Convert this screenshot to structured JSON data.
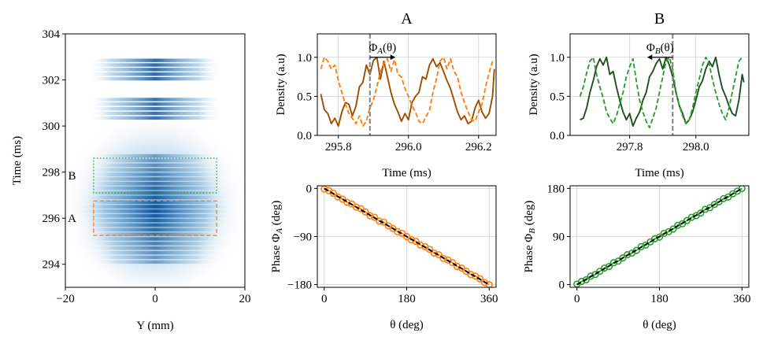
{
  "chart_data": [
    {
      "id": "density-map",
      "type": "heatmap",
      "xlabel": "Y (mm)",
      "ylabel": "Time (ms)",
      "xlim": [
        -20,
        20
      ],
      "ylim": [
        293,
        304
      ],
      "xticks": [
        "−20",
        "0",
        "20"
      ],
      "yticks": [
        "294",
        "296",
        "298",
        "300",
        "302",
        "304"
      ],
      "regions": [
        {
          "label": "A",
          "x": [
            -13.7,
            13.7
          ],
          "y": [
            295.25,
            296.75
          ],
          "color": "#ff7f0e",
          "style": "dashed"
        },
        {
          "label": "B",
          "x": [
            -13.7,
            13.7
          ],
          "y": [
            297.1,
            298.6
          ],
          "color": "#2ca02c",
          "style": "dotted"
        }
      ],
      "colormap": "Blues"
    },
    {
      "id": "density-A",
      "type": "line",
      "title": "A",
      "xlabel": "Time (ms)",
      "ylabel": "Density (a.u)",
      "xlim": [
        295.74,
        296.25
      ],
      "ylim": [
        0,
        1.3
      ],
      "xticks": [
        "295.8",
        "296.0",
        "296.2"
      ],
      "yticks": [
        "0.0",
        "0.5",
        "1.0"
      ],
      "vline": 295.89,
      "annotation": {
        "text": "Φ",
        "sub": "A",
        "rest": "(θ)",
        "arrow": "right"
      },
      "series": [
        {
          "style": "solid",
          "color": "#a04d00",
          "x": [
            295.75,
            295.76,
            295.77,
            295.78,
            295.79,
            295.8,
            295.81,
            295.82,
            295.83,
            295.84,
            295.85,
            295.86,
            295.87,
            295.88,
            295.89,
            295.9,
            295.91,
            295.92,
            295.93,
            295.94,
            295.95,
            295.96,
            295.97,
            295.98,
            295.99,
            296.0,
            296.01,
            296.02,
            296.03,
            296.04,
            296.05,
            296.06,
            296.07,
            296.08,
            296.09,
            296.1,
            296.11,
            296.12,
            296.13,
            296.14,
            296.15,
            296.16,
            296.17,
            296.18,
            296.19,
            296.2,
            296.21,
            296.22,
            296.23,
            296.24,
            296.245
          ],
          "y": [
            0.53,
            0.33,
            0.28,
            0.15,
            0.22,
            0.12,
            0.3,
            0.42,
            0.4,
            0.25,
            0.37,
            0.62,
            0.68,
            0.9,
            0.78,
            0.96,
            1.0,
            0.72,
            0.95,
            0.75,
            0.55,
            0.4,
            0.3,
            0.18,
            0.28,
            0.2,
            0.42,
            0.5,
            0.55,
            0.75,
            0.72,
            0.9,
            0.98,
            0.88,
            0.93,
            0.82,
            0.7,
            0.6,
            0.45,
            0.3,
            0.2,
            0.25,
            0.15,
            0.18,
            0.35,
            0.45,
            0.3,
            0.22,
            0.28,
            0.5,
            0.85
          ]
        },
        {
          "style": "dashed",
          "color": "#ff7f0e",
          "x": [
            295.75,
            295.76,
            295.77,
            295.78,
            295.79,
            295.8,
            295.81,
            295.82,
            295.83,
            295.84,
            295.85,
            295.86,
            295.87,
            295.88,
            295.89,
            295.9,
            295.91,
            295.92,
            295.93,
            295.94,
            295.95,
            295.96,
            295.97,
            295.98,
            295.99,
            296.0,
            296.01,
            296.02,
            296.03,
            296.04,
            296.05,
            296.06,
            296.07,
            296.08,
            296.09,
            296.1,
            296.11,
            296.12,
            296.13,
            296.14,
            296.15,
            296.16,
            296.17,
            296.18,
            296.19,
            296.2,
            296.21,
            296.22,
            296.23,
            296.24
          ],
          "y": [
            0.85,
            1.0,
            0.95,
            0.85,
            0.9,
            0.7,
            0.55,
            0.4,
            0.28,
            0.22,
            0.15,
            0.25,
            0.12,
            0.18,
            0.35,
            0.45,
            0.62,
            0.82,
            0.92,
            0.98,
            0.82,
            0.97,
            0.78,
            0.75,
            0.6,
            0.5,
            0.38,
            0.3,
            0.18,
            0.15,
            0.24,
            0.32,
            0.55,
            0.72,
            0.95,
            1.0,
            0.85,
            0.98,
            0.82,
            0.75,
            0.55,
            0.42,
            0.3,
            0.2,
            0.18,
            0.3,
            0.4,
            0.62,
            0.8,
            0.95
          ]
        }
      ]
    },
    {
      "id": "density-B",
      "type": "line",
      "title": "B",
      "xlabel": "Time (ms)",
      "ylabel": "Density (a.u)",
      "xlim": [
        297.62,
        298.16
      ],
      "ylim": [
        0,
        1.3
      ],
      "xticks": [
        "297.8",
        "298.0"
      ],
      "yticks": [
        "0.0",
        "0.5",
        "1.0"
      ],
      "vline": 297.93,
      "annotation": {
        "text": "Φ",
        "sub": "B",
        "rest": "(θ)",
        "arrow": "left"
      },
      "series": [
        {
          "style": "solid",
          "color": "#1f4f1f",
          "x": [
            297.65,
            297.66,
            297.67,
            297.68,
            297.69,
            297.7,
            297.71,
            297.72,
            297.73,
            297.74,
            297.75,
            297.76,
            297.77,
            297.78,
            297.79,
            297.8,
            297.81,
            297.82,
            297.83,
            297.84,
            297.85,
            297.86,
            297.87,
            297.88,
            297.89,
            297.9,
            297.91,
            297.92,
            297.93,
            297.94,
            297.95,
            297.96,
            297.97,
            297.98,
            297.99,
            298.0,
            298.01,
            298.02,
            298.03,
            298.04,
            298.05,
            298.06,
            298.07,
            298.08,
            298.09,
            298.1,
            298.11,
            298.12,
            298.13,
            298.14,
            298.145
          ],
          "y": [
            0.2,
            0.22,
            0.35,
            0.55,
            0.7,
            0.88,
            0.98,
            0.9,
            1.0,
            0.78,
            0.82,
            0.62,
            0.45,
            0.3,
            0.2,
            0.28,
            0.12,
            0.22,
            0.3,
            0.45,
            0.55,
            0.75,
            0.82,
            0.92,
            0.98,
            0.85,
            1.0,
            0.9,
            0.75,
            0.55,
            0.38,
            0.28,
            0.15,
            0.2,
            0.3,
            0.45,
            0.62,
            0.7,
            0.85,
            0.95,
            0.88,
            1.0,
            0.78,
            0.6,
            0.5,
            0.38,
            0.28,
            0.25,
            0.45,
            0.78,
            0.68
          ]
        },
        {
          "style": "dashed",
          "color": "#2ca02c",
          "x": [
            297.65,
            297.66,
            297.67,
            297.68,
            297.69,
            297.7,
            297.71,
            297.72,
            297.73,
            297.74,
            297.75,
            297.76,
            297.77,
            297.78,
            297.79,
            297.8,
            297.81,
            297.82,
            297.83,
            297.84,
            297.85,
            297.86,
            297.87,
            297.88,
            297.89,
            297.9,
            297.91,
            297.92,
            297.93,
            297.94,
            297.95,
            297.96,
            297.97,
            297.98,
            297.99,
            298.0,
            298.01,
            298.02,
            298.03,
            298.04,
            298.05,
            298.06,
            298.07,
            298.08,
            298.09,
            298.1,
            298.11,
            298.12,
            298.13,
            298.14
          ],
          "y": [
            0.5,
            0.62,
            0.8,
            0.95,
            1.0,
            0.78,
            0.62,
            0.48,
            0.3,
            0.22,
            0.15,
            0.25,
            0.4,
            0.55,
            0.75,
            0.88,
            0.98,
            0.7,
            0.45,
            0.3,
            0.18,
            0.1,
            0.22,
            0.35,
            0.55,
            0.75,
            0.95,
            1.0,
            0.85,
            0.55,
            0.38,
            0.25,
            0.15,
            0.2,
            0.35,
            0.55,
            0.72,
            0.9,
            1.0,
            0.92,
            0.72,
            0.55,
            0.4,
            0.28,
            0.2,
            0.35,
            0.55,
            0.75,
            0.95,
            1.0
          ]
        }
      ]
    },
    {
      "id": "phase-A",
      "type": "scatter",
      "xlabel": "θ (deg)",
      "ylabel": "Phase Φ_A (deg)",
      "xlim": [
        -15,
        375
      ],
      "ylim": [
        -185,
        5
      ],
      "xticks": [
        "0",
        "180",
        "360"
      ],
      "yticks": [
        "0",
        "−90",
        "−180"
      ],
      "marker_color": "#ff7f0e",
      "fit": {
        "slope": -0.5,
        "intercept": 0,
        "style": "dashed",
        "color": "#000000"
      },
      "x": [
        0,
        10,
        20,
        30,
        40,
        50,
        60,
        70,
        80,
        90,
        100,
        110,
        120,
        130,
        140,
        150,
        160,
        170,
        180,
        190,
        200,
        210,
        220,
        230,
        240,
        250,
        260,
        270,
        280,
        290,
        300,
        310,
        320,
        330,
        340,
        350,
        360
      ],
      "y": [
        -1,
        -4,
        -9,
        -16,
        -20,
        -26,
        -29,
        -35,
        -38,
        -44,
        -51,
        -54,
        -61,
        -63,
        -70,
        -75,
        -81,
        -84,
        -90,
        -96,
        -99,
        -106,
        -109,
        -114,
        -121,
        -124,
        -131,
        -134,
        -139,
        -146,
        -149,
        -155,
        -161,
        -164,
        -169,
        -176,
        -180
      ]
    },
    {
      "id": "phase-B",
      "type": "scatter",
      "xlabel": "θ (deg)",
      "ylabel": "Phase Φ_B (deg)",
      "xlim": [
        -15,
        375
      ],
      "ylim": [
        -5,
        185
      ],
      "xticks": [
        "0",
        "180",
        "360"
      ],
      "yticks": [
        "0",
        "90",
        "180"
      ],
      "marker_color": "#2ca02c",
      "fit": {
        "slope": 0.5,
        "intercept": 0,
        "style": "dashed",
        "color": "#000000"
      },
      "x": [
        0,
        10,
        20,
        30,
        40,
        50,
        60,
        70,
        80,
        90,
        100,
        110,
        120,
        130,
        140,
        150,
        160,
        170,
        180,
        190,
        200,
        210,
        220,
        230,
        240,
        250,
        260,
        270,
        280,
        290,
        300,
        310,
        320,
        330,
        340,
        350,
        360
      ],
      "y": [
        1,
        6,
        9,
        16,
        19,
        25,
        31,
        34,
        41,
        44,
        50,
        56,
        59,
        64,
        71,
        74,
        80,
        86,
        89,
        96,
        99,
        104,
        111,
        114,
        120,
        126,
        129,
        134,
        141,
        144,
        150,
        155,
        161,
        164,
        170,
        175,
        180
      ]
    }
  ]
}
